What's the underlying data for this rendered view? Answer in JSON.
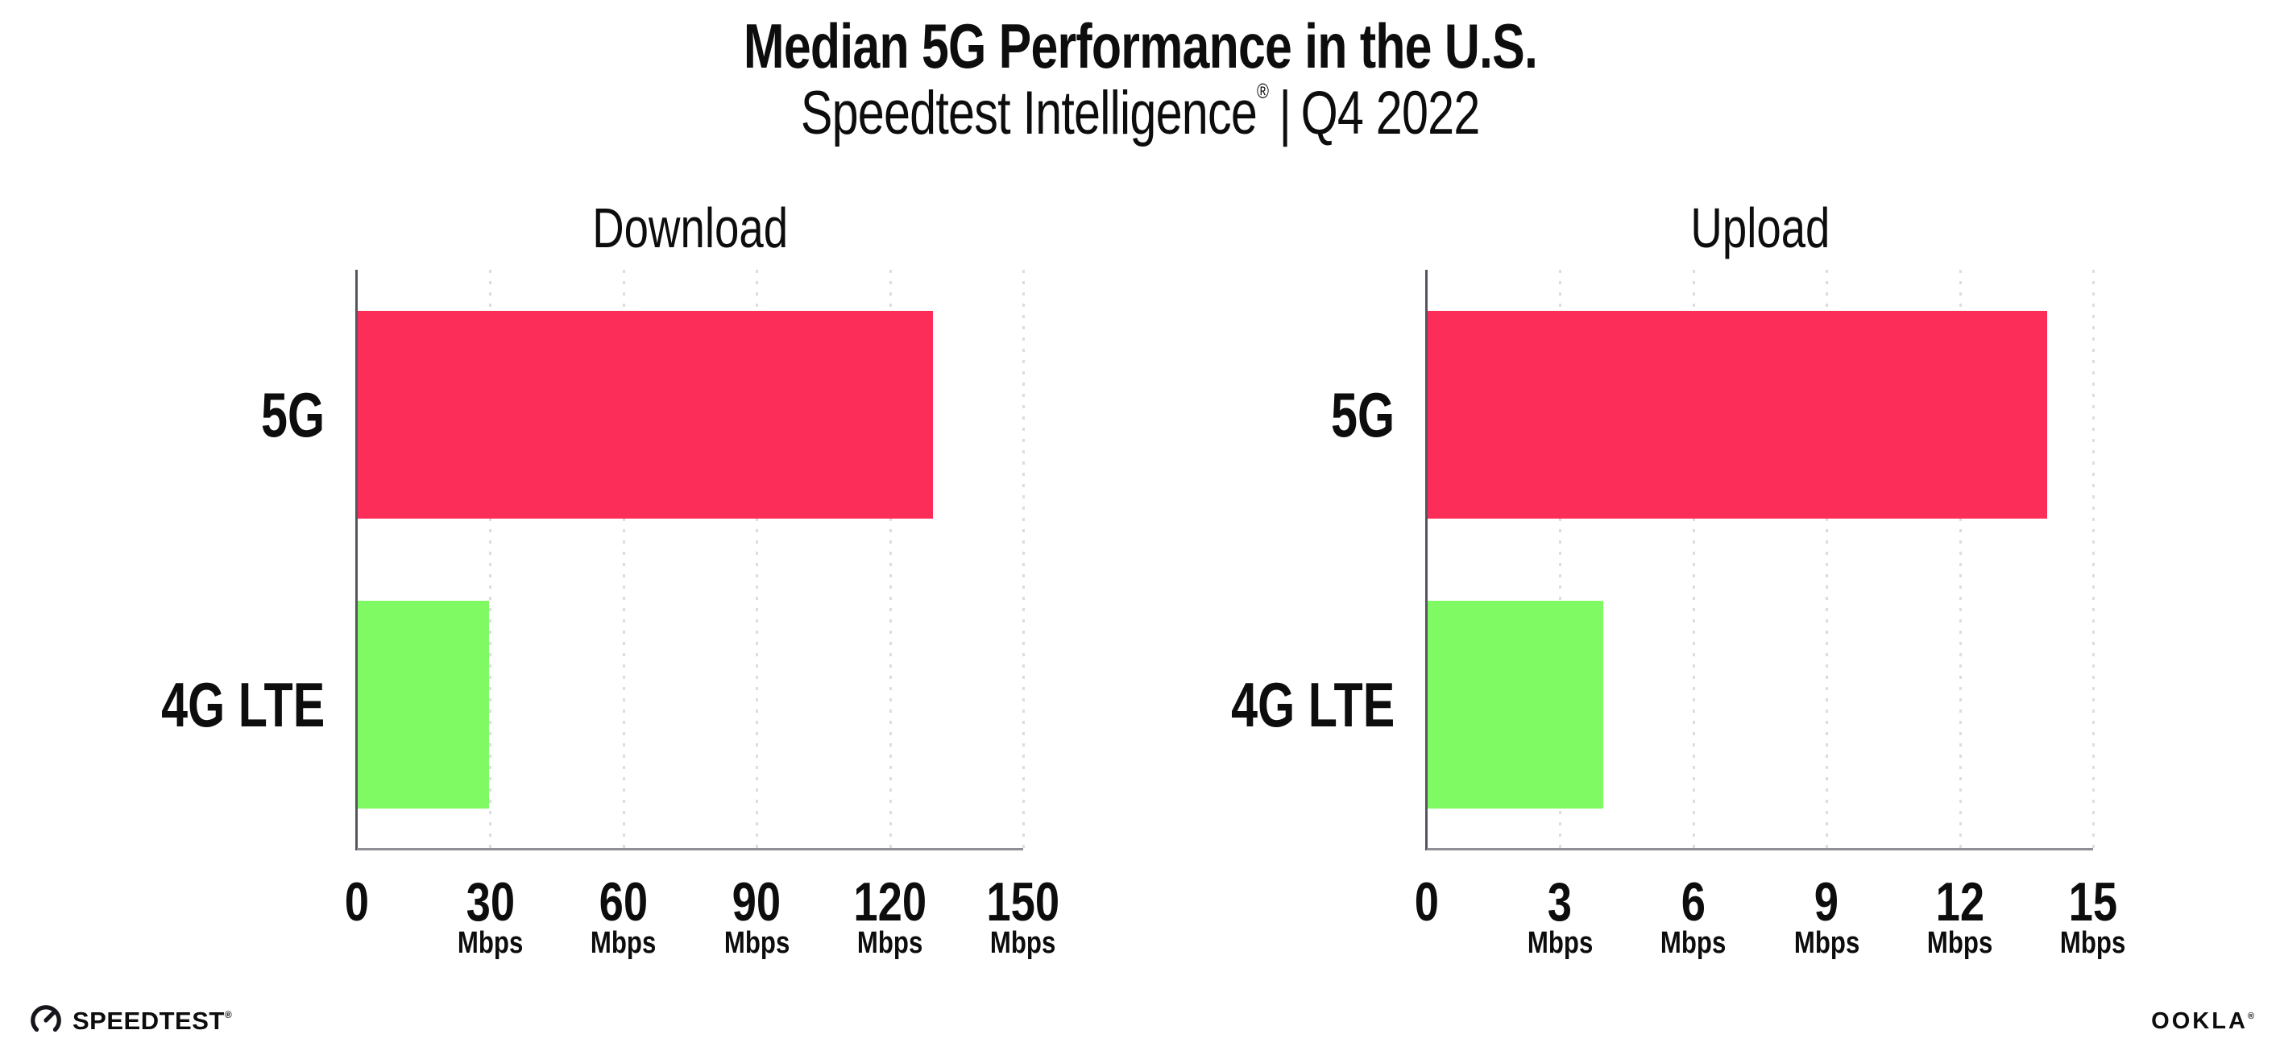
{
  "header": {
    "title": "Median 5G Performance in the U.S.",
    "subtitle": {
      "brand": "Speedtest Intelligence",
      "reg_mark": "®",
      "separator": "|",
      "period": "Q4 2022"
    }
  },
  "chart_data": [
    {
      "type": "bar",
      "orientation": "horizontal",
      "title": "Download",
      "categories": [
        "5G",
        "4G LTE"
      ],
      "values": [
        129.7,
        29.8
      ],
      "unit": "Mbps",
      "xlim": [
        0,
        150
      ],
      "xticks": [
        0,
        30,
        60,
        90,
        120,
        150
      ],
      "xtick_unit": "Mbps",
      "bar_colors": [
        "#fc2e59",
        "#80fa62"
      ],
      "grid": "vertical-dotted",
      "legend": "none"
    },
    {
      "type": "bar",
      "orientation": "horizontal",
      "title": "Upload",
      "categories": [
        "5G",
        "4G LTE"
      ],
      "values": [
        13.96,
        3.98
      ],
      "unit": "Mbps",
      "xlim": [
        0,
        15
      ],
      "xticks": [
        0,
        3,
        6,
        9,
        12,
        15
      ],
      "xtick_unit": "Mbps",
      "bar_colors": [
        "#fc2e59",
        "#80fa62"
      ],
      "grid": "vertical-dotted",
      "legend": "none"
    }
  ],
  "footer": {
    "speedtest_logo_text": "SPEEDTEST",
    "speedtest_trademark": "®",
    "speedtest_icon": "speedtest-gauge-icon",
    "ookla_logo_text": "OOKLA",
    "ookla_trademark": "®"
  },
  "colors": {
    "bar_5g": "#fc2e59",
    "bar_4g_lte": "#80fa62",
    "gridline": "#dcdce6",
    "y_axis": "#55555e",
    "x_axis": "#8e8e96",
    "text": "#0d0d0d",
    "background": "#ffffff"
  }
}
